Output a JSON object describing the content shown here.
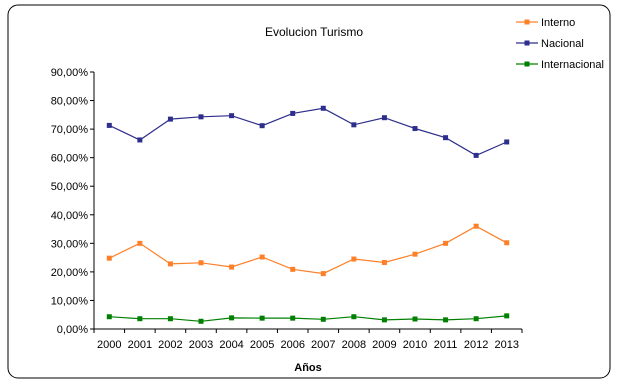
{
  "chart_data": {
    "type": "line",
    "title": "Evolucion Turismo",
    "xlabel": "Años",
    "ylabel": "",
    "categories": [
      "2000",
      "2001",
      "2002",
      "2003",
      "2004",
      "2005",
      "2006",
      "2007",
      "2008",
      "2009",
      "2010",
      "2011",
      "2012",
      "2013"
    ],
    "ylim": [
      0,
      0.9
    ],
    "yticks": [
      "0,00%",
      "10,00%",
      "20,00%",
      "30,00%",
      "40,00%",
      "50,00%",
      "60,00%",
      "70,00%",
      "80,00%",
      "90,00%"
    ],
    "grid": false,
    "legend_position": "top-right",
    "series": [
      {
        "name": "Interno",
        "color": "#ff7f27",
        "values": [
          0.248,
          0.3,
          0.228,
          0.232,
          0.217,
          0.252,
          0.209,
          0.194,
          0.245,
          0.233,
          0.262,
          0.3,
          0.36,
          0.302
        ]
      },
      {
        "name": "Nacional",
        "color": "#2e2e8c",
        "values": [
          0.713,
          0.662,
          0.735,
          0.743,
          0.747,
          0.712,
          0.755,
          0.773,
          0.715,
          0.74,
          0.702,
          0.67,
          0.608,
          0.655
        ]
      },
      {
        "name": "Internacional",
        "color": "#008000",
        "values": [
          0.043,
          0.036,
          0.036,
          0.027,
          0.039,
          0.038,
          0.038,
          0.034,
          0.043,
          0.032,
          0.035,
          0.032,
          0.036,
          0.046
        ]
      }
    ]
  }
}
